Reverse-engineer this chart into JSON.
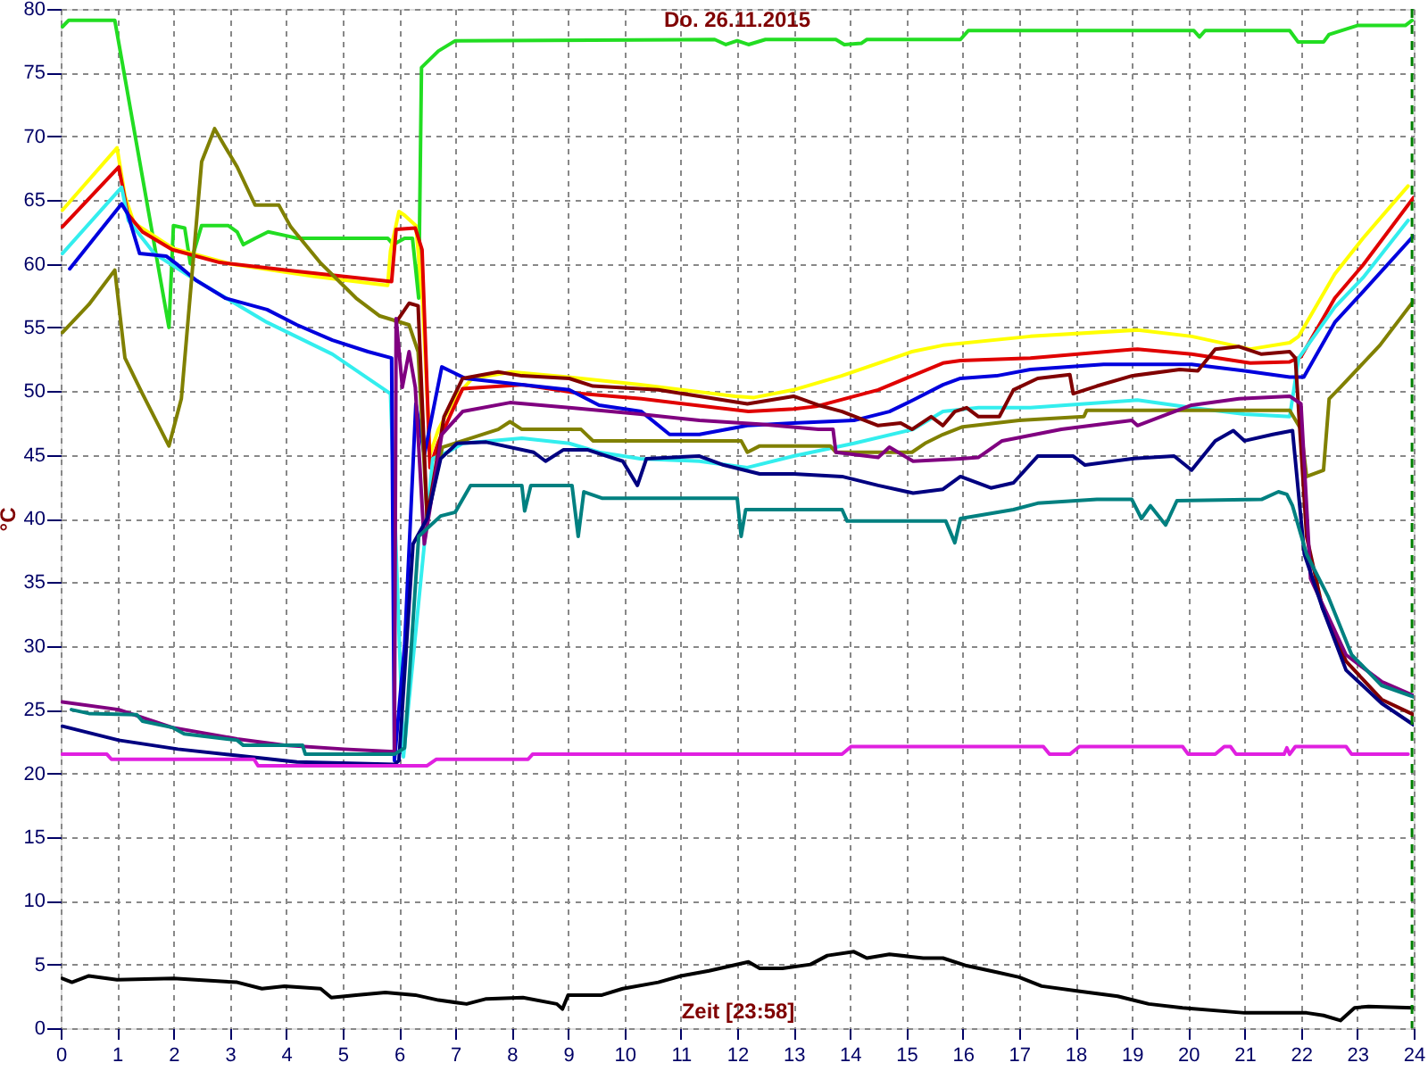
{
  "chart_data": {
    "type": "line",
    "title": "Do. 26.11.2015",
    "xlabel": "Zeit [23:58]",
    "ylabel": "°C",
    "xlim": [
      0,
      24
    ],
    "ylim": [
      0,
      80
    ],
    "xticks": [
      0,
      1,
      2,
      3,
      4,
      5,
      6,
      7,
      8,
      9,
      10,
      11,
      12,
      13,
      14,
      15,
      16,
      17,
      18,
      19,
      20,
      21,
      22,
      23,
      24
    ],
    "yticks": [
      0,
      5,
      10,
      15,
      20,
      25,
      30,
      35,
      40,
      45,
      50,
      55,
      60,
      65,
      70,
      75,
      80
    ],
    "grid": true,
    "ref_lines": [
      {
        "axis": "x",
        "value": 23.97,
        "color": "#008000",
        "line_style": "dashed"
      }
    ],
    "series": [
      {
        "color": "#22dd22",
        "x": [
          0.03,
          0.14,
          0.96,
          1.92,
          2.0,
          2.2,
          2.3,
          2.5,
          2.97,
          3.13,
          3.24,
          3.45,
          3.68,
          4.0,
          4.2,
          5.8,
          5.9,
          6.1,
          6.24,
          6.35,
          6.4,
          6.7,
          7.0,
          11.6,
          11.8,
          12.0,
          12.2,
          12.5,
          13.75,
          13.9,
          14.2,
          14.3,
          15.96,
          16.1,
          20.1,
          20.2,
          20.3,
          21.8,
          21.95,
          22.4,
          22.5,
          23.0,
          23.85,
          23.97
        ],
        "values": [
          78.6,
          79.1,
          79.1,
          55.0,
          63.0,
          62.8,
          60.0,
          63.0,
          63.0,
          62.5,
          61.5,
          62.0,
          62.5,
          62.2,
          62.0,
          62.0,
          61.5,
          62.0,
          62.0,
          57.3,
          75.4,
          76.7,
          77.5,
          77.6,
          77.2,
          77.5,
          77.2,
          77.6,
          77.6,
          77.2,
          77.3,
          77.6,
          77.6,
          78.3,
          78.3,
          77.8,
          78.3,
          78.3,
          77.4,
          77.4,
          78.0,
          78.7,
          78.7,
          79.1
        ]
      },
      {
        "color": "#ffff00",
        "x": [
          0.03,
          1.0,
          1.14,
          1.3,
          2.0,
          3.0,
          4.5,
          5.8,
          5.85,
          6.0,
          6.1,
          6.3,
          6.42,
          6.55,
          6.7,
          7.0,
          7.3,
          8.0,
          9.0,
          10.28,
          11.96,
          12.3,
          13.0,
          13.85,
          15.1,
          15.65,
          17.2,
          19.1,
          20.06,
          21.1,
          21.8,
          21.96,
          22.6,
          23.1,
          23.9
        ],
        "values": [
          64.2,
          69.1,
          65.3,
          63.2,
          61.2,
          60.0,
          59.0,
          58.3,
          61.0,
          64.1,
          63.8,
          63.0,
          57.0,
          45.0,
          47.0,
          49.5,
          51.0,
          51.5,
          51.1,
          50.5,
          49.6,
          49.5,
          50.1,
          51.2,
          53.1,
          53.6,
          54.3,
          54.8,
          54.3,
          53.3,
          53.8,
          54.3,
          59.2,
          62.0,
          66.1
        ]
      },
      {
        "color": "#e00000",
        "x": [
          0.03,
          1.03,
          1.19,
          1.45,
          1.98,
          2.82,
          4.19,
          5.87,
          5.95,
          6.29,
          6.41,
          6.55,
          6.7,
          6.9,
          7.13,
          8.2,
          9.23,
          10.3,
          12.2,
          13.0,
          13.4,
          14.5,
          15.65,
          15.96,
          17.2,
          19.1,
          20.06,
          21.1,
          21.8,
          22.0,
          22.6,
          23.1,
          24.0
        ],
        "values": [
          62.9,
          67.6,
          63.9,
          62.5,
          61.1,
          60.1,
          59.4,
          58.6,
          62.7,
          62.8,
          61.1,
          44.0,
          46.0,
          48.0,
          50.2,
          50.5,
          49.8,
          49.4,
          48.4,
          48.6,
          48.8,
          50.1,
          52.2,
          52.4,
          52.6,
          53.3,
          52.9,
          52.2,
          52.3,
          52.7,
          57.3,
          59.9,
          65.2
        ]
      },
      {
        "color": "#33eeee",
        "x": [
          0.03,
          1.08,
          1.2,
          1.66,
          2.4,
          3.66,
          4.82,
          5.85,
          6.08,
          6.6,
          6.9,
          7.13,
          8.18,
          9.02,
          9.55,
          10.28,
          11.33,
          12.18,
          13.0,
          14.07,
          15.12,
          15.65,
          16.28,
          17.2,
          19.1,
          20.06,
          21.0,
          21.8,
          21.96,
          22.6,
          23.1,
          23.9
        ],
        "values": [
          60.8,
          66.0,
          63.4,
          60.8,
          58.7,
          55.4,
          52.9,
          49.8,
          21.3,
          44.7,
          45.3,
          45.9,
          46.3,
          45.9,
          45.2,
          44.7,
          44.5,
          44.0,
          44.9,
          45.9,
          47.0,
          48.4,
          48.7,
          48.7,
          49.3,
          48.7,
          48.2,
          48.0,
          52.6,
          56.6,
          58.9,
          63.4
        ]
      },
      {
        "color": "#0000dd",
        "x": [
          0.16,
          1.08,
          1.19,
          1.4,
          1.87,
          2.08,
          2.4,
          2.92,
          3.66,
          4.19,
          4.82,
          5.45,
          5.87,
          5.92,
          6.1,
          6.3,
          6.45,
          6.76,
          7.18,
          8.18,
          9.02,
          9.55,
          10.3,
          10.8,
          11.33,
          12.18,
          13.0,
          14.07,
          14.7,
          15.12,
          15.65,
          15.96,
          16.6,
          17.2,
          18.5,
          20.06,
          21.0,
          21.8,
          22.05,
          22.6,
          23.1,
          24.0
        ],
        "values": [
          59.6,
          64.7,
          63.9,
          60.8,
          60.6,
          59.9,
          58.7,
          57.3,
          56.4,
          55.2,
          54.0,
          53.1,
          52.6,
          21.0,
          30.0,
          49.0,
          45.0,
          51.9,
          51.0,
          50.5,
          50.1,
          48.9,
          48.4,
          46.6,
          46.6,
          47.3,
          47.5,
          47.7,
          48.4,
          49.3,
          50.5,
          51.0,
          51.2,
          51.7,
          52.1,
          52.1,
          51.6,
          51.1,
          51.1,
          55.4,
          57.8,
          62.2
        ]
      },
      {
        "color": "#808000",
        "x": [
          0.03,
          0.5,
          0.96,
          1.14,
          1.45,
          1.92,
          2.14,
          2.5,
          2.73,
          2.9,
          3.13,
          3.45,
          3.87,
          4.08,
          4.6,
          5.24,
          5.66,
          6.18,
          6.34,
          6.5,
          6.77,
          7.13,
          7.76,
          7.97,
          8.18,
          9.23,
          9.44,
          12.07,
          12.18,
          12.4,
          13.65,
          13.75,
          15.1,
          15.33,
          15.65,
          16.0,
          17.0,
          18.15,
          18.2,
          21.8,
          22.0,
          22.1,
          22.4,
          22.5,
          22.7,
          23.4,
          24.0
        ],
        "values": [
          54.6,
          56.8,
          59.5,
          52.6,
          49.8,
          45.7,
          49.4,
          68.0,
          70.6,
          69.3,
          67.6,
          64.6,
          64.6,
          62.9,
          60.1,
          57.3,
          55.9,
          55.2,
          53.1,
          40.0,
          45.6,
          46.1,
          47.0,
          47.6,
          47.0,
          47.0,
          46.1,
          46.1,
          45.2,
          45.7,
          45.7,
          45.2,
          45.2,
          45.9,
          46.6,
          47.2,
          47.7,
          48.0,
          48.5,
          48.5,
          47.0,
          43.3,
          43.8,
          49.4,
          50.3,
          53.6,
          57.1
        ]
      },
      {
        "color": "#800000",
        "x": [
          5.95,
          6.18,
          6.34,
          6.5,
          6.8,
          7.13,
          7.76,
          8.18,
          9.02,
          9.44,
          10.6,
          11.33,
          12.18,
          13.0,
          13.44,
          13.86,
          14.5,
          14.9,
          15.1,
          15.44,
          15.65,
          15.86,
          16.07,
          16.28,
          16.65,
          16.9,
          17.33,
          17.9,
          17.96,
          18.38,
          19.0,
          19.85,
          20.17,
          20.48,
          20.9,
          21.3,
          21.8,
          21.9,
          22.1,
          22.38,
          22.8,
          23.43,
          24.0
        ],
        "values": [
          55.4,
          56.9,
          56.7,
          40.0,
          48.0,
          51.0,
          51.5,
          51.2,
          51.0,
          50.4,
          50.1,
          49.6,
          49.0,
          49.6,
          48.9,
          48.4,
          47.3,
          47.5,
          47.0,
          48.0,
          47.3,
          48.4,
          48.7,
          48.0,
          48.0,
          50.1,
          51.0,
          51.3,
          49.8,
          50.4,
          51.2,
          51.7,
          51.6,
          53.3,
          53.5,
          52.9,
          53.1,
          52.6,
          38.6,
          33.0,
          28.8,
          25.8,
          24.6
        ]
      },
      {
        "color": "#800080",
        "x": [
          0.03,
          1.03,
          1.98,
          3.13,
          3.97,
          5.03,
          5.92,
          5.95,
          6.06,
          6.18,
          6.29,
          6.45,
          6.76,
          7.13,
          7.97,
          9.02,
          10.28,
          11.33,
          12.4,
          13.44,
          13.7,
          13.75,
          14.5,
          14.7,
          15.12,
          15.96,
          16.28,
          16.7,
          17.75,
          19.0,
          19.1,
          19.64,
          20.06,
          20.9,
          21.8,
          22.0,
          22.17,
          22.8,
          23.43,
          24.0
        ],
        "values": [
          25.6,
          25.0,
          23.6,
          22.7,
          22.2,
          21.9,
          21.7,
          55.7,
          50.3,
          53.1,
          50.3,
          38.0,
          46.6,
          48.4,
          49.1,
          48.7,
          48.2,
          47.7,
          47.4,
          47.0,
          47.0,
          45.2,
          44.8,
          45.6,
          44.5,
          44.7,
          44.8,
          46.1,
          47.0,
          47.7,
          47.3,
          48.2,
          48.9,
          49.4,
          49.6,
          49.0,
          35.3,
          29.3,
          27.2,
          26.1
        ]
      },
      {
        "color": "#000080",
        "x": [
          0.03,
          1.03,
          2.08,
          3.13,
          4.19,
          5.92,
          6.0,
          6.25,
          6.5,
          6.74,
          7.03,
          7.55,
          8.39,
          8.6,
          8.92,
          9.34,
          9.97,
          10.23,
          10.39,
          11.33,
          11.76,
          12.4,
          13.0,
          13.86,
          14.5,
          15.12,
          15.65,
          15.96,
          16.5,
          16.9,
          17.33,
          17.96,
          18.17,
          19.0,
          19.75,
          20.06,
          20.48,
          20.8,
          21.0,
          21.5,
          21.85,
          22.06,
          22.38,
          22.8,
          23.43,
          24.0
        ],
        "values": [
          23.7,
          22.6,
          21.9,
          21.4,
          20.9,
          20.7,
          21.0,
          38.0,
          40.0,
          44.7,
          45.9,
          46.0,
          45.2,
          44.5,
          45.4,
          45.4,
          44.5,
          42.6,
          44.7,
          44.9,
          44.2,
          43.5,
          43.5,
          43.3,
          42.6,
          42.0,
          42.3,
          43.3,
          42.4,
          42.8,
          44.9,
          44.9,
          44.2,
          44.7,
          44.9,
          43.8,
          46.1,
          46.9,
          46.1,
          46.6,
          46.9,
          37.2,
          33.0,
          28.1,
          25.5,
          23.8
        ]
      },
      {
        "color": "#008080",
        "x": [
          0.19,
          0.5,
          1.35,
          1.45,
          1.98,
          2.19,
          3.13,
          3.24,
          4.29,
          4.34,
          5.92,
          6.1,
          6.35,
          6.74,
          7.0,
          7.27,
          7.34,
          8.18,
          8.23,
          8.34,
          9.07,
          9.18,
          9.28,
          9.6,
          12.0,
          12.07,
          12.15,
          13.86,
          13.95,
          15.7,
          15.86,
          15.96,
          16.9,
          17.33,
          18.38,
          19.0,
          19.17,
          19.33,
          19.6,
          19.8,
          21.3,
          21.6,
          21.75,
          21.85,
          22.1,
          22.48,
          22.9,
          23.43,
          24.0
        ],
        "values": [
          25.0,
          24.7,
          24.6,
          24.1,
          23.6,
          23.1,
          22.6,
          22.2,
          22.2,
          21.5,
          21.5,
          22.0,
          38.6,
          40.2,
          40.5,
          42.6,
          42.6,
          42.6,
          40.6,
          42.6,
          42.6,
          38.6,
          42.1,
          41.6,
          41.6,
          38.6,
          40.7,
          40.7,
          39.8,
          39.8,
          38.1,
          40.0,
          40.7,
          41.2,
          41.5,
          41.5,
          40.0,
          41.0,
          39.5,
          41.4,
          41.5,
          42.1,
          41.9,
          41.0,
          37.2,
          33.9,
          29.3,
          26.9,
          26.0
        ]
      },
      {
        "color": "#e020e0",
        "x": [
          0.03,
          0.82,
          0.9,
          3.43,
          3.5,
          6.5,
          6.66,
          8.29,
          8.37,
          13.86,
          14.02,
          17.43,
          17.54,
          17.9,
          18.07,
          19.9,
          20.0,
          20.48,
          20.64,
          20.75,
          20.85,
          21.7,
          21.75,
          21.8,
          21.9,
          22.8,
          22.9,
          23.9
        ],
        "values": [
          21.5,
          21.5,
          21.1,
          21.1,
          20.6,
          20.6,
          21.1,
          21.1,
          21.5,
          21.5,
          22.1,
          22.1,
          21.5,
          21.5,
          22.1,
          22.1,
          21.5,
          21.5,
          22.1,
          22.1,
          21.5,
          21.5,
          22.0,
          21.5,
          22.1,
          22.1,
          21.5,
          21.5
        ]
      },
      {
        "color": "#000000",
        "x": [
          0.03,
          0.2,
          0.5,
          1.0,
          2.0,
          3.13,
          3.57,
          3.97,
          4.61,
          4.8,
          5.24,
          5.76,
          6.29,
          6.7,
          7.2,
          7.55,
          8.2,
          8.8,
          8.9,
          9.0,
          9.6,
          9.97,
          10.6,
          11.0,
          11.5,
          12.2,
          12.4,
          12.8,
          13.3,
          13.6,
          14.07,
          14.3,
          14.7,
          15.3,
          15.65,
          16.07,
          16.6,
          17.0,
          17.4,
          18.05,
          18.75,
          19.3,
          19.9,
          21.0,
          22.1,
          22.4,
          22.7,
          22.95,
          23.2,
          24.0
        ],
        "values": [
          3.9,
          3.6,
          4.1,
          3.8,
          3.9,
          3.6,
          3.1,
          3.3,
          3.1,
          2.4,
          2.6,
          2.8,
          2.6,
          2.2,
          1.9,
          2.3,
          2.4,
          1.9,
          1.5,
          2.6,
          2.6,
          3.1,
          3.6,
          4.1,
          4.5,
          5.2,
          4.7,
          4.7,
          5.0,
          5.7,
          6.0,
          5.5,
          5.8,
          5.5,
          5.5,
          4.9,
          4.4,
          4.0,
          3.3,
          2.9,
          2.5,
          1.9,
          1.6,
          1.2,
          1.2,
          1.0,
          0.6,
          1.6,
          1.7,
          1.6
        ]
      }
    ]
  }
}
